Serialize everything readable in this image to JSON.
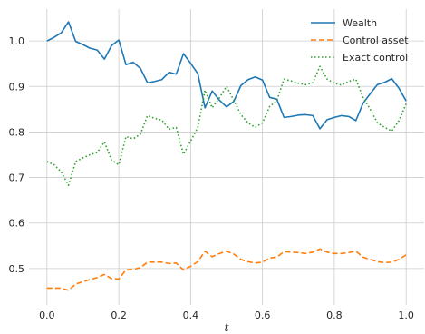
{
  "chart_data": {
    "type": "line",
    "title": "",
    "xlabel": "t",
    "ylabel": "",
    "xlim": [
      -0.05,
      1.05
    ],
    "ylim": [
      0.42,
      1.07
    ],
    "xticks": [
      0.0,
      0.2,
      0.4,
      0.6,
      0.8,
      1.0
    ],
    "xtick_labels": [
      "0.0",
      "0.2",
      "0.4",
      "0.6",
      "0.8",
      "1.0"
    ],
    "yticks": [
      0.5,
      0.6,
      0.7,
      0.8,
      0.9,
      1.0
    ],
    "ytick_labels": [
      "0.5",
      "0.6",
      "0.7",
      "0.8",
      "0.9",
      "1.0"
    ],
    "grid": true,
    "legend_position": "top-right",
    "x": [
      0.0,
      0.02,
      0.04,
      0.06,
      0.08,
      0.1,
      0.12,
      0.14,
      0.16,
      0.18,
      0.2,
      0.22,
      0.24,
      0.26,
      0.28,
      0.3,
      0.32,
      0.34,
      0.36,
      0.38,
      0.4,
      0.42,
      0.44,
      0.46,
      0.48,
      0.5,
      0.52,
      0.54,
      0.56,
      0.58,
      0.6,
      0.62,
      0.64,
      0.66,
      0.68,
      0.7,
      0.72,
      0.74,
      0.76,
      0.78,
      0.8,
      0.82,
      0.84,
      0.86,
      0.88,
      0.9,
      0.92,
      0.94,
      0.96,
      0.98,
      1.0
    ],
    "series": [
      {
        "name": "Wealth",
        "color": "#1f77b4",
        "style": "solid",
        "values": [
          1.0,
          1.008,
          1.018,
          1.042,
          0.999,
          0.992,
          0.984,
          0.98,
          0.96,
          0.99,
          1.002,
          0.948,
          0.953,
          0.94,
          0.908,
          0.911,
          0.915,
          0.931,
          0.927,
          0.972,
          0.951,
          0.928,
          0.853,
          0.89,
          0.87,
          0.855,
          0.867,
          0.902,
          0.915,
          0.921,
          0.914,
          0.876,
          0.872,
          0.832,
          0.834,
          0.837,
          0.838,
          0.836,
          0.807,
          0.827,
          0.832,
          0.836,
          0.834,
          0.825,
          0.863,
          0.884,
          0.904,
          0.909,
          0.917,
          0.896,
          0.868
        ]
      },
      {
        "name": "Control asset",
        "color": "#ff7f0e",
        "style": "dashed",
        "values": [
          0.457,
          0.457,
          0.457,
          0.452,
          0.466,
          0.471,
          0.476,
          0.48,
          0.487,
          0.478,
          0.477,
          0.497,
          0.498,
          0.502,
          0.514,
          0.514,
          0.514,
          0.511,
          0.512,
          0.497,
          0.505,
          0.515,
          0.538,
          0.526,
          0.533,
          0.538,
          0.532,
          0.52,
          0.515,
          0.512,
          0.514,
          0.523,
          0.525,
          0.537,
          0.536,
          0.535,
          0.533,
          0.536,
          0.543,
          0.536,
          0.533,
          0.533,
          0.535,
          0.538,
          0.525,
          0.52,
          0.515,
          0.513,
          0.514,
          0.52,
          0.53
        ]
      },
      {
        "name": "Exact control",
        "color": "#2ca02c",
        "style": "dotted",
        "values": [
          0.735,
          0.728,
          0.712,
          0.683,
          0.735,
          0.743,
          0.75,
          0.755,
          0.778,
          0.738,
          0.728,
          0.79,
          0.785,
          0.795,
          0.836,
          0.83,
          0.826,
          0.806,
          0.81,
          0.751,
          0.78,
          0.81,
          0.892,
          0.853,
          0.875,
          0.9,
          0.87,
          0.838,
          0.82,
          0.81,
          0.82,
          0.856,
          0.869,
          0.916,
          0.912,
          0.907,
          0.904,
          0.908,
          0.944,
          0.916,
          0.907,
          0.903,
          0.911,
          0.916,
          0.876,
          0.85,
          0.82,
          0.81,
          0.802,
          0.825,
          0.862
        ]
      }
    ]
  }
}
